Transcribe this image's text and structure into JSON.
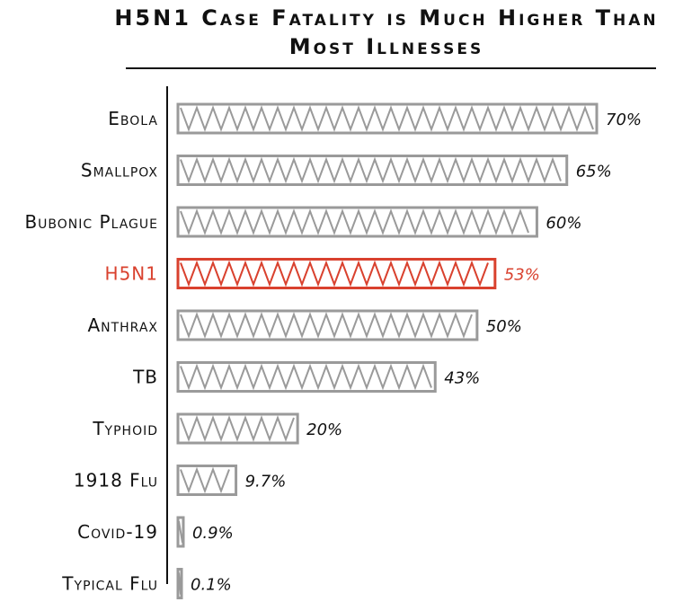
{
  "chart_data": {
    "type": "bar",
    "orientation": "horizontal",
    "title": [
      "H5N1 Case Fatality is Much Higher Than",
      "Most Illnesses"
    ],
    "categories": [
      "Ebola",
      "Smallpox",
      "Bubonic Plague",
      "H5N1",
      "Anthrax",
      "TB",
      "Typhoid",
      "1918 Flu",
      "Covid-19",
      "Typical Flu"
    ],
    "values": [
      70,
      65,
      60,
      53,
      50,
      43,
      20,
      9.7,
      0.9,
      0.1
    ],
    "value_labels": [
      "70%",
      "65%",
      "60%",
      "53%",
      "50%",
      "43%",
      "20%",
      "9.7%",
      "0.9%",
      "0.1%"
    ],
    "highlight": "H5N1",
    "colors": {
      "default": "#9a9a9a",
      "highlight": "#d9412e",
      "text": "#111111",
      "axis": "#111111"
    },
    "xlim": [
      0,
      70
    ],
    "grid": false,
    "legend": "none"
  }
}
